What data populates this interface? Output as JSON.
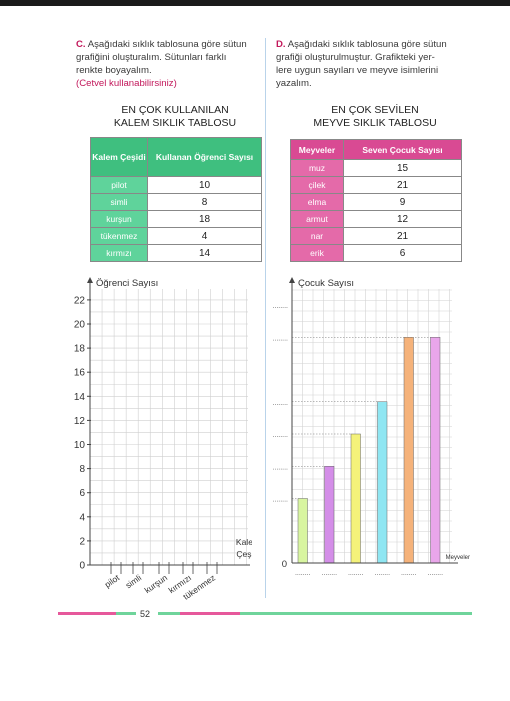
{
  "left": {
    "question": {
      "letter": "C.",
      "lines": [
        "Aşağıdaki sıklık tablosuna göre sütun",
        "grafiğini oluşturalım. Sütunları farklı",
        "renkte boyayalım."
      ],
      "note": "(Cetvel kullanabilirsiniz)"
    },
    "table_title": [
      "EN ÇOK KULLANILAN",
      "KALEM SIKLIK TABLOSU"
    ],
    "table": {
      "headers": [
        "Kalem Çeşidi",
        "Kullanan Öğrenci Sayısı"
      ],
      "rows": [
        {
          "label": "pilot",
          "value": "10"
        },
        {
          "label": "simli",
          "value": "8"
        },
        {
          "label": "kurşun",
          "value": "18"
        },
        {
          "label": "tükenmez",
          "value": "4"
        },
        {
          "label": "kırmızı",
          "value": "14"
        }
      ],
      "header_color": "#3fbf7f",
      "label_color": "#5fd39b"
    },
    "chart": {
      "y_title": "Öğrenci Sayısı",
      "x_title": [
        "Kalem",
        "Çeşidi"
      ],
      "y_ticks": [
        "0",
        "2",
        "4",
        "6",
        "8",
        "10",
        "12",
        "14",
        "16",
        "18",
        "20",
        "22"
      ],
      "x_labels": [
        "pilot",
        "simli",
        "kurşun",
        "kırmızı",
        "tükenmez"
      ]
    }
  },
  "right": {
    "question": {
      "letter": "D.",
      "lines": [
        "Aşağıdaki sıklık tablosuna göre sütun",
        "grafiği oluşturulmuştur. Grafikteki yer-",
        "lere uygun sayıları ve meyve isimlerini",
        "yazalım."
      ]
    },
    "table_title": [
      "EN ÇOK SEVİLEN",
      "MEYVE SIKLIK TABLOSU"
    ],
    "table": {
      "headers": [
        "Meyveler",
        "Seven Çocuk Sayısı"
      ],
      "rows": [
        {
          "label": "muz",
          "value": "15"
        },
        {
          "label": "çilek",
          "value": "21"
        },
        {
          "label": "elma",
          "value": "9"
        },
        {
          "label": "armut",
          "value": "12"
        },
        {
          "label": "nar",
          "value": "21"
        },
        {
          "label": "erik",
          "value": "6"
        }
      ],
      "header_color": "#d94a93",
      "label_color": "#e46aa9"
    },
    "chart": {
      "y_title": "Çocuk Sayısı",
      "x_title": "Meyveler",
      "y_zero": "0",
      "dots": "........"
    }
  },
  "page_number": "52",
  "chart_data": {
    "type": "bar",
    "categories": [
      "",
      "",
      "",
      "",
      "",
      ""
    ],
    "values": [
      6,
      9,
      12,
      15,
      21,
      21
    ],
    "colors": [
      "#d8f5a0",
      "#d48ee8",
      "#f4f27a",
      "#8fe6f2",
      "#f5b27a",
      "#e9a6ea"
    ],
    "xlabel": "Meyveler",
    "ylabel": "Çocuk Sayısı",
    "ylim": [
      0,
      24
    ],
    "grid": true
  }
}
